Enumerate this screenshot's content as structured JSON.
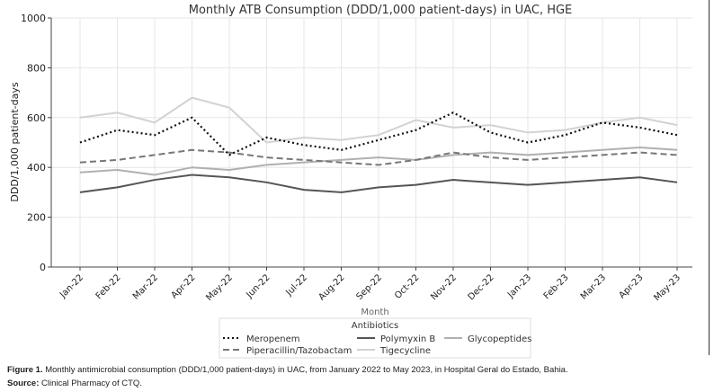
{
  "chart_data": {
    "type": "line",
    "title": "Monthly ATB Consumption (DDD/1,000 patient-days) in UAC, HGE",
    "xlabel": "Month",
    "ylabel": "DDD/1,000 patient-days",
    "ylim": [
      0,
      1000
    ],
    "yticks": [
      0,
      200,
      400,
      600,
      800,
      1000
    ],
    "grid": true,
    "legend": {
      "title": "Antibiotics",
      "placement": "bottom-center"
    },
    "categories": [
      "Jan-22",
      "Feb-22",
      "Mar-22",
      "Apr-22",
      "May-22",
      "Jun-22",
      "Jul-22",
      "Aug-22",
      "Sep-22",
      "Oct-22",
      "Nov-22",
      "Dec-22",
      "Jan-23",
      "Feb-23",
      "Mar-23",
      "Apr-23",
      "May-23"
    ],
    "series": [
      {
        "name": "Meropenem",
        "style": "dotted",
        "color": "#111111",
        "values": [
          500,
          550,
          530,
          600,
          450,
          520,
          490,
          470,
          510,
          550,
          620,
          540,
          500,
          530,
          580,
          560,
          530
        ]
      },
      {
        "name": "Piperacillin/Tazobactam",
        "style": "dashed",
        "color": "#777777",
        "values": [
          420,
          430,
          450,
          470,
          460,
          440,
          430,
          420,
          410,
          430,
          460,
          440,
          430,
          440,
          450,
          460,
          450
        ]
      },
      {
        "name": "Polymyxin B",
        "style": "solid",
        "color": "#555555",
        "values": [
          300,
          320,
          350,
          370,
          360,
          340,
          310,
          300,
          320,
          330,
          350,
          340,
          330,
          340,
          350,
          360,
          340
        ]
      },
      {
        "name": "Tigecycline",
        "style": "solid",
        "color": "#d2d2d2",
        "values": [
          600,
          620,
          580,
          680,
          640,
          500,
          520,
          510,
          530,
          590,
          560,
          570,
          540,
          550,
          580,
          600,
          570
        ]
      },
      {
        "name": "Glycopeptides",
        "style": "solid",
        "color": "#b0b0b0",
        "values": [
          380,
          390,
          370,
          400,
          390,
          410,
          420,
          430,
          440,
          430,
          450,
          460,
          450,
          460,
          470,
          480,
          470
        ]
      }
    ]
  },
  "caption": {
    "figure_label": "Figure 1.",
    "figure_text": " Monthly antimicrobial consumption (DDD/1,000 patient-days) in UAC, from January 2022 to May 2023, in Hospital Geral do Estado, Bahia.",
    "source_label": "Source:",
    "source_text": " Clinical Pharmacy of CTQ."
  }
}
